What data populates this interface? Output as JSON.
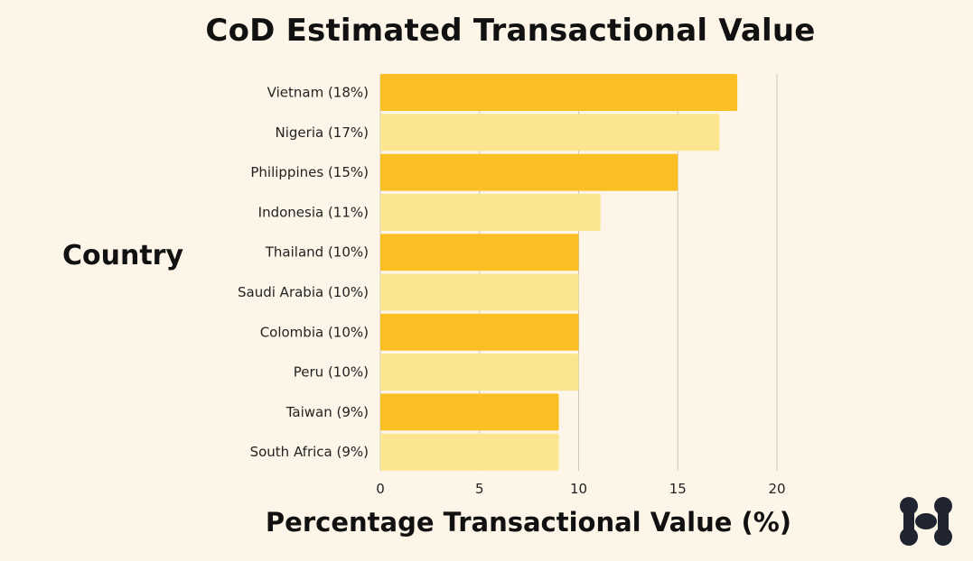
{
  "chart_data": {
    "type": "bar",
    "orientation": "horizontal",
    "title": "CoD Estimated Transactional Value",
    "xlabel": "Percentage Transactional Value (%)",
    "ylabel": "Country",
    "categories": [
      "Vietnam (18%)",
      "Nigeria (17%)",
      "Philippines (15%)",
      "Indonesia (11%)",
      "Thailand (10%)",
      "Saudi Arabia (10%)",
      "Colombia (10%)",
      "Peru (10%)",
      "Taiwan (9%)",
      "South Africa (9%)"
    ],
    "values": [
      18,
      17.1,
      15,
      11.1,
      10,
      10,
      10,
      10,
      9,
      9
    ],
    "xlim": [
      0,
      20
    ],
    "xticks": [
      "0",
      "5",
      "10",
      "15",
      "20"
    ],
    "grid": true,
    "colors": [
      "#fbbf24",
      "#fbe68f"
    ],
    "background": "#fdf5e8"
  },
  "logo": {
    "icon": "brand-logo-icon",
    "color": "#1f2430"
  }
}
